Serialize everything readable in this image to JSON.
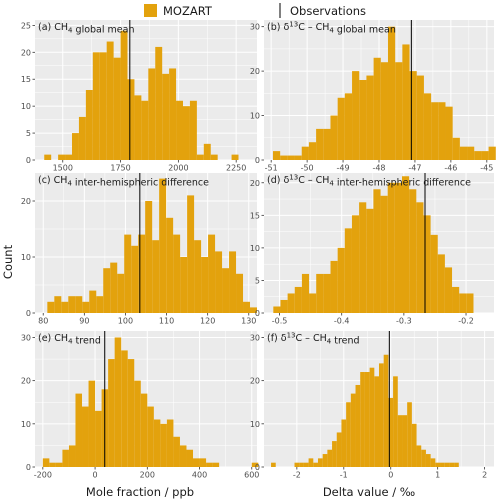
{
  "colors": {
    "bar": "#E3A20D",
    "panel_bg": "#EBEBEB",
    "grid": "#ffffff",
    "observation_line": "#000000"
  },
  "legend": {
    "mozart_label": "MOZART",
    "observations_label": "Observations"
  },
  "axis_titles": {
    "y": "Count",
    "x_left": "Mole fraction / ppb",
    "x_right": "Delta value / ‰"
  },
  "chart_data": [
    {
      "type": "bar",
      "panel": "a",
      "title": "(a) CH4 global mean",
      "xticks": [
        1500,
        1750,
        2000,
        2250
      ],
      "yticks": [
        0,
        5,
        10,
        15,
        20,
        25
      ],
      "xlim": [
        1380,
        2340
      ],
      "ylim": [
        0,
        26
      ],
      "bin_start": 1420,
      "bin_width": 30,
      "counts": [
        1,
        0,
        1,
        1,
        5,
        8,
        13,
        20,
        20,
        22,
        19,
        24,
        15,
        12,
        11,
        17,
        21,
        16,
        17,
        11,
        10,
        11,
        1,
        3,
        1,
        0,
        0,
        1
      ],
      "observation": 1790
    },
    {
      "type": "bar",
      "panel": "b",
      "title": "(b) δ13C – CH4 global mean",
      "xticks": [
        -51,
        -50,
        -49,
        -48,
        -47,
        -46,
        -45
      ],
      "yticks": [
        0,
        10,
        20,
        30
      ],
      "xlim": [
        -51.2,
        -44.8
      ],
      "ylim": [
        0,
        31.5
      ],
      "bin_start": -50.95,
      "bin_width": 0.2,
      "counts": [
        2,
        1,
        1,
        1,
        3,
        4,
        7,
        7,
        10,
        14,
        15,
        20,
        18,
        19,
        23,
        22,
        30,
        22,
        26,
        20,
        19,
        15,
        13,
        13,
        12,
        5,
        3,
        3,
        2,
        2,
        3
      ],
      "observation": -47.1
    },
    {
      "type": "bar",
      "panel": "c",
      "title": "(c) CH4 inter-hemispheric difference",
      "xticks": [
        80,
        90,
        100,
        110,
        120,
        130
      ],
      "yticks": [
        0,
        10,
        20
      ],
      "xlim": [
        78,
        132
      ],
      "ylim": [
        0,
        25
      ],
      "bin_start": 81,
      "bin_width": 1.7,
      "counts": [
        2,
        3,
        2,
        3,
        3,
        2,
        4,
        3,
        8,
        9,
        7,
        14,
        12,
        14,
        20,
        13,
        24,
        17,
        14,
        10,
        21,
        13,
        10,
        14,
        11,
        8,
        11,
        7,
        2,
        1
      ],
      "observation": 103.5
    },
    {
      "type": "bar",
      "panel": "d",
      "title": "(d) δ13C – CH4 inter-hemispheric difference",
      "xticks": [
        -0.5,
        -0.4,
        -0.3,
        -0.2
      ],
      "yticks": [
        0,
        5,
        10,
        15,
        20
      ],
      "xlim": [
        -0.525,
        -0.155
      ],
      "ylim": [
        0,
        21.5
      ],
      "bin_start": -0.51,
      "bin_width": 0.0115,
      "counts": [
        1,
        2,
        3,
        4,
        6,
        3,
        6,
        6,
        8,
        10,
        13,
        15,
        17,
        16,
        19,
        18,
        20,
        20,
        21,
        19,
        17,
        15,
        12,
        9,
        7,
        4,
        3,
        3
      ],
      "observation": -0.266
    },
    {
      "type": "bar",
      "panel": "e",
      "title": "(e) CH4 trend",
      "xticks": [
        -200,
        0,
        200,
        400,
        600
      ],
      "yticks": [
        0,
        10,
        20,
        30
      ],
      "xlim": [
        -230,
        620
      ],
      "ylim": [
        0,
        31.5
      ],
      "bin_start": -200,
      "bin_width": 25,
      "counts": [
        2,
        1,
        1,
        4,
        5,
        17,
        14,
        20,
        13,
        18,
        25,
        30,
        27,
        25,
        20,
        17,
        14,
        11,
        10,
        11,
        7,
        5,
        4,
        2,
        2,
        1,
        1,
        0,
        0,
        0,
        0,
        0,
        1
      ],
      "observation": 37
    },
    {
      "type": "bar",
      "panel": "f",
      "title": "(f) δ13C – CH4 trend",
      "xticks": [
        -2,
        -1,
        0,
        1,
        2
      ],
      "yticks": [
        0,
        10,
        20,
        30
      ],
      "xlim": [
        -2.7,
        2.2
      ],
      "ylim": [
        0,
        31.5
      ],
      "bin_start": -2.55,
      "bin_width": 0.1,
      "counts": [
        1,
        0,
        0,
        0,
        0,
        1,
        1,
        1,
        2,
        1,
        2,
        3,
        4,
        6,
        8,
        11,
        15,
        17,
        19,
        22,
        22,
        23,
        21,
        24,
        26,
        16,
        21,
        12,
        12,
        15,
        10,
        5,
        4,
        3,
        2,
        1,
        1,
        1,
        1,
        1
      ],
      "observation": -0.03
    }
  ]
}
